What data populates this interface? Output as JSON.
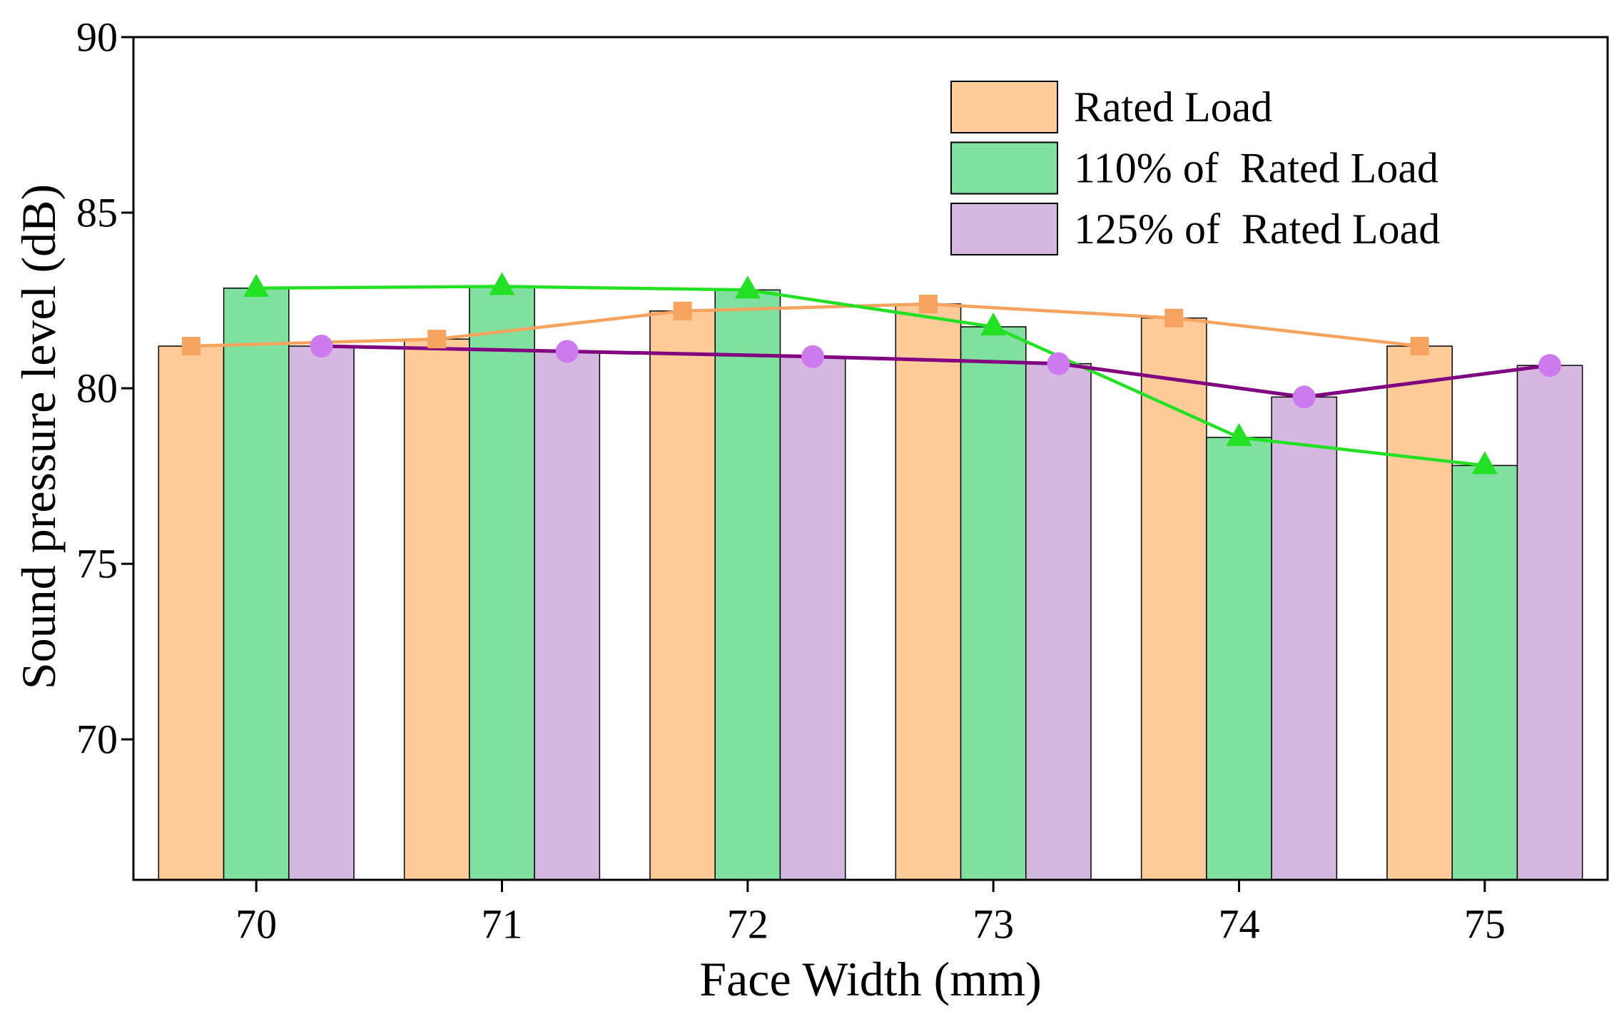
{
  "chart_data": {
    "type": "bar",
    "title": "",
    "xlabel": "Face Width (mm)",
    "ylabel": "Sound pressure level (dB)",
    "categories": [
      "70",
      "71",
      "72",
      "73",
      "74",
      "75"
    ],
    "ylim": [
      66,
      90
    ],
    "yticks": [
      70,
      75,
      80,
      85,
      90
    ],
    "grid": false,
    "legend": {
      "placement": "top-right"
    },
    "series": [
      {
        "name": "Rated Load",
        "values": [
          81.2,
          81.4,
          82.2,
          82.4,
          82.0,
          81.2
        ],
        "bar_color": "#FFCC99",
        "line_color": "#F5A35F",
        "marker_color": "#F5A35F",
        "marker": "square"
      },
      {
        "name": "110% of  Rated Load",
        "values": [
          82.85,
          82.9,
          82.8,
          81.75,
          78.6,
          77.8
        ],
        "bar_color": "#80E0A0",
        "line_color": "#22E022",
        "marker_color": "#22E022",
        "marker": "triangle"
      },
      {
        "name": "125% of  Rated Load",
        "values": [
          81.2,
          81.05,
          80.9,
          80.7,
          79.75,
          80.65
        ],
        "bar_color": "#D4B8E0",
        "line_color": "#800080",
        "marker_color": "#CC7AEE",
        "marker": "circle"
      }
    ]
  }
}
